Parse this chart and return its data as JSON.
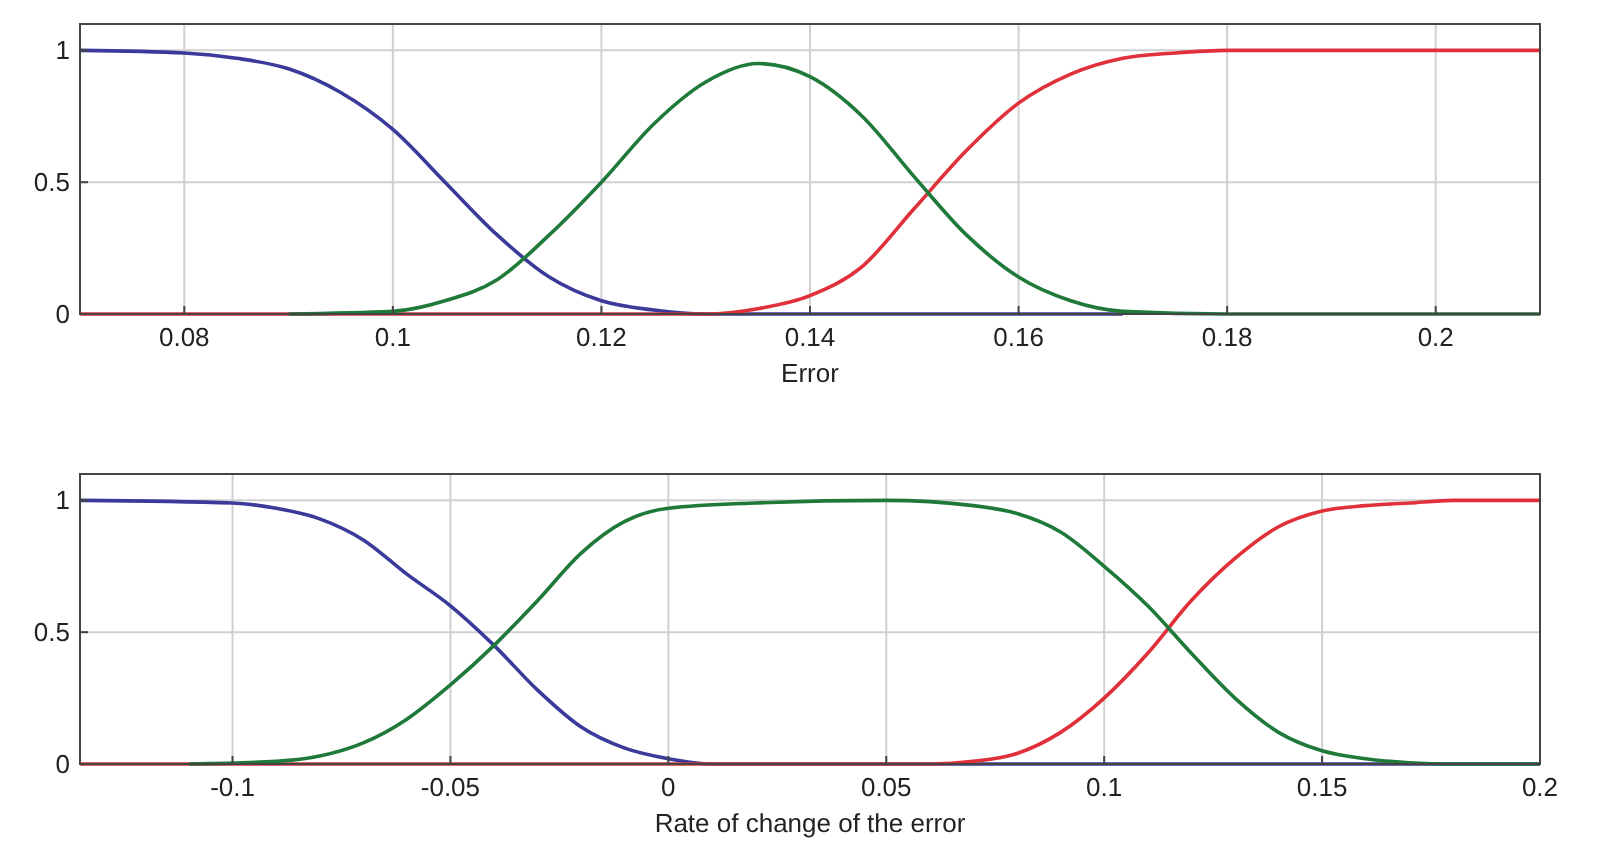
{
  "chart_data": [
    {
      "type": "line",
      "xlabel": "Error",
      "xlim": [
        0.07,
        0.21
      ],
      "xticks": [
        0.08,
        0.1,
        0.12,
        0.14,
        0.16,
        0.18,
        0.2
      ],
      "ylim": [
        0,
        1.1
      ],
      "yticks": [
        0,
        0.5,
        1
      ],
      "grid": true,
      "line_style": "solid",
      "marker": "none",
      "series": [
        {
          "color": "#3a3a9a",
          "x": [
            0.07,
            0.08,
            0.085,
            0.09,
            0.095,
            0.1,
            0.105,
            0.11,
            0.115,
            0.12,
            0.125,
            0.13,
            0.14,
            0.17
          ],
          "values": [
            1,
            0.99,
            0.97,
            0.93,
            0.84,
            0.7,
            0.5,
            0.3,
            0.14,
            0.05,
            0.015,
            0,
            0,
            0
          ]
        },
        {
          "color": "#e0303a",
          "x": [
            0.07,
            0.13,
            0.135,
            0.14,
            0.145,
            0.15,
            0.155,
            0.16,
            0.165,
            0.17,
            0.175,
            0.18,
            0.21
          ],
          "values": [
            0,
            0,
            0.02,
            0.07,
            0.18,
            0.4,
            0.62,
            0.8,
            0.91,
            0.97,
            0.99,
            1,
            1
          ]
        },
        {
          "color": "#1f7a3a",
          "x": [
            0.09,
            0.1,
            0.105,
            0.11,
            0.115,
            0.12,
            0.125,
            0.13,
            0.135,
            0.14,
            0.145,
            0.15,
            0.155,
            0.16,
            0.165,
            0.17,
            0.18,
            0.21
          ],
          "values": [
            0,
            0.01,
            0.05,
            0.13,
            0.3,
            0.5,
            0.72,
            0.88,
            0.95,
            0.9,
            0.75,
            0.52,
            0.3,
            0.14,
            0.05,
            0.01,
            0,
            0
          ]
        }
      ]
    },
    {
      "type": "line",
      "xlabel": "Rate of change of the error",
      "xlim": [
        -0.135,
        0.2
      ],
      "xticks": [
        -0.1,
        -0.05,
        0,
        0.05,
        0.1,
        0.15,
        0.2
      ],
      "ylim": [
        0,
        1.1
      ],
      "yticks": [
        0,
        0.5,
        1
      ],
      "grid": true,
      "line_style": "solid",
      "marker": "none",
      "series": [
        {
          "color": "#3a3a9a",
          "x": [
            -0.135,
            -0.1,
            -0.09,
            -0.08,
            -0.07,
            -0.06,
            -0.05,
            -0.04,
            -0.03,
            -0.02,
            -0.01,
            0,
            0.01,
            0.2
          ],
          "values": [
            1,
            0.99,
            0.97,
            0.93,
            0.85,
            0.72,
            0.6,
            0.45,
            0.28,
            0.14,
            0.06,
            0.02,
            0,
            0
          ]
        },
        {
          "color": "#e0303a",
          "x": [
            -0.135,
            0.06,
            0.07,
            0.08,
            0.09,
            0.1,
            0.11,
            0.12,
            0.13,
            0.14,
            0.15,
            0.16,
            0.17,
            0.18,
            0.2
          ],
          "values": [
            0,
            0,
            0.01,
            0.04,
            0.12,
            0.25,
            0.42,
            0.62,
            0.78,
            0.9,
            0.96,
            0.98,
            0.99,
            1,
            1
          ]
        },
        {
          "color": "#1f7a3a",
          "x": [
            -0.11,
            -0.09,
            -0.08,
            -0.07,
            -0.06,
            -0.05,
            -0.04,
            -0.03,
            -0.02,
            -0.01,
            0,
            0.02,
            0.05,
            0.07,
            0.08,
            0.09,
            0.1,
            0.11,
            0.12,
            0.13,
            0.14,
            0.15,
            0.16,
            0.17,
            0.18,
            0.2
          ],
          "values": [
            0,
            0.01,
            0.03,
            0.08,
            0.17,
            0.3,
            0.45,
            0.62,
            0.8,
            0.92,
            0.97,
            0.99,
            1,
            0.98,
            0.95,
            0.88,
            0.75,
            0.6,
            0.42,
            0.25,
            0.12,
            0.05,
            0.02,
            0.005,
            0,
            0
          ]
        }
      ]
    }
  ]
}
